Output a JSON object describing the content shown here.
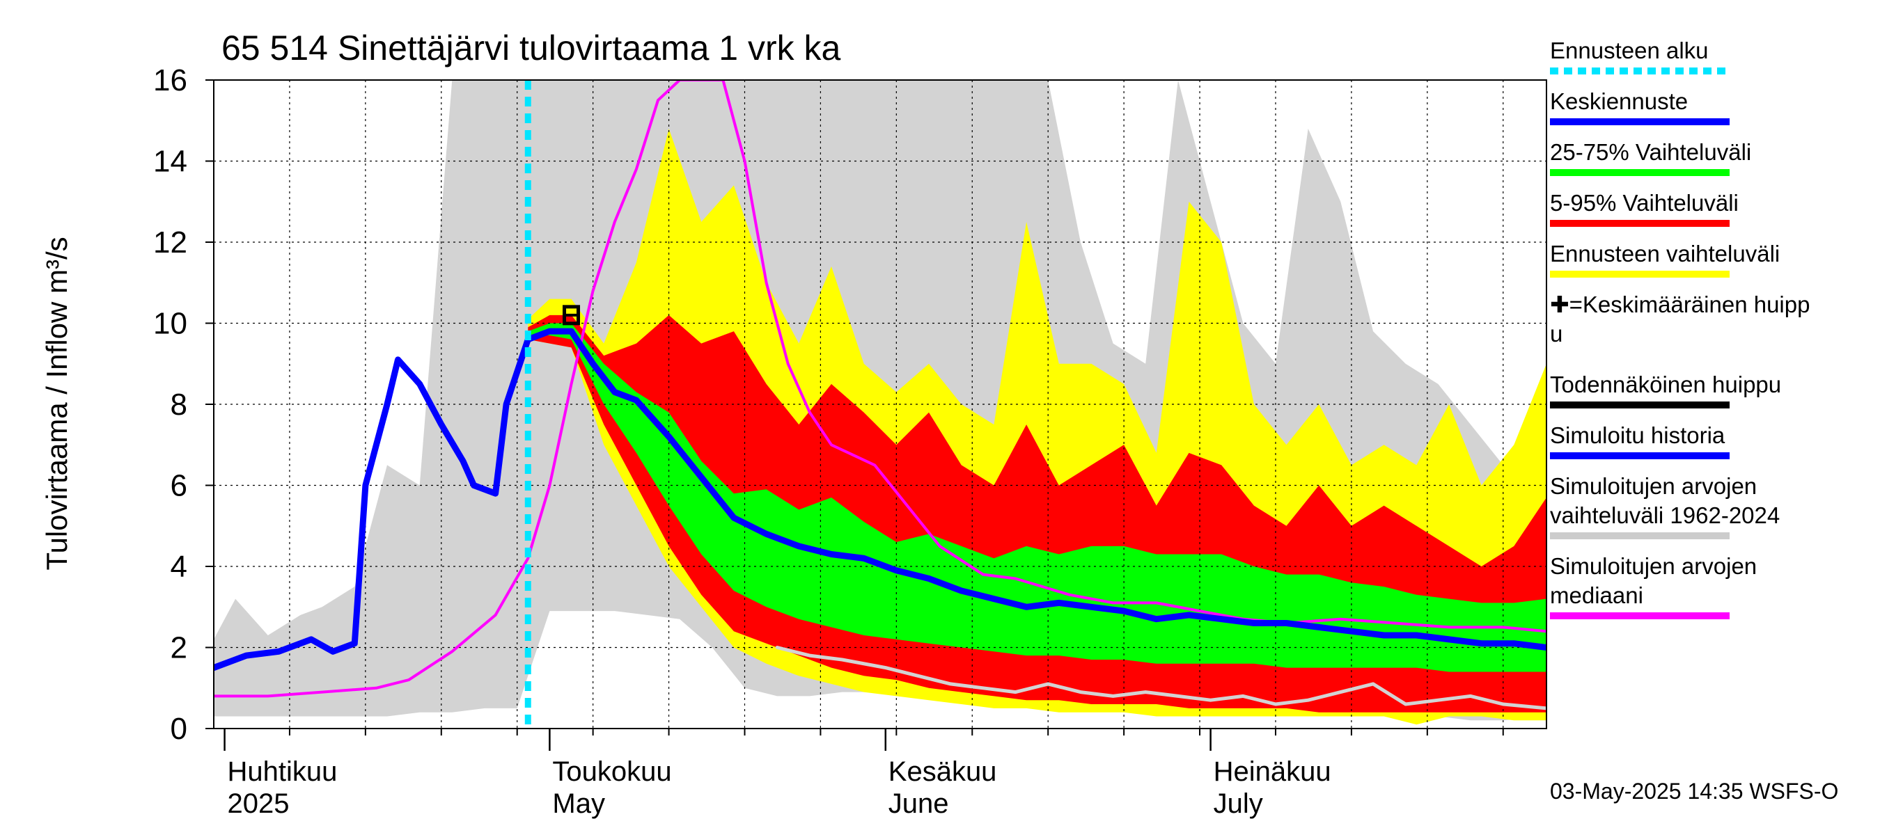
{
  "chart_data": {
    "type": "area",
    "title": "65 514 Sinettäjärvi tulovirtaama 1 vrk ka",
    "ylabel": "Tulovirtaama / Inflow   m³/s",
    "ylim": [
      0,
      16
    ],
    "yticks": [
      "0",
      "2",
      "4",
      "6",
      "8",
      "10",
      "12",
      "14",
      "16"
    ],
    "xlim": [
      "2025-03-31",
      "2025-08-01"
    ],
    "x_month_labels": [
      {
        "fi": "Huhtikuu",
        "en": "2025",
        "date": "2025-04-01"
      },
      {
        "fi": "Toukokuu",
        "en": "May",
        "date": "2025-05-01"
      },
      {
        "fi": "Kesäkuu",
        "en": "June",
        "date": "2025-06-01"
      },
      {
        "fi": "Heinäkuu",
        "en": "July",
        "date": "2025-07-01"
      }
    ],
    "grid": true,
    "legend_position": "right",
    "footer": "03-May-2025 14:35 WSFS-O",
    "forecast_start": "2025-04-29",
    "peak_marker": {
      "date": "2025-05-03",
      "value": 10.2
    },
    "legend": [
      {
        "label": "Ennusteen alku",
        "color": "#00e5ff",
        "style": "dashed"
      },
      {
        "label": "Keskiennuste",
        "color": "#0000ff",
        "style": "solid"
      },
      {
        "label": "25-75% Vaihteluväli",
        "color": "#00ff00",
        "style": "solid"
      },
      {
        "label": "5-95% Vaihteluväli",
        "color": "#ff0000",
        "style": "solid"
      },
      {
        "label": "Ennusteen vaihteluväli",
        "color": "#ffff00",
        "style": "solid"
      },
      {
        "label": "✚=Keskimääräinen huipp u",
        "color": "",
        "style": "none"
      },
      {
        "label": "Todennäköinen huippu",
        "color": "#000000",
        "style": "solid"
      },
      {
        "label": "Simuloitu historia",
        "color": "#0000ff",
        "style": "solid"
      },
      {
        "label": "Simuloitujen arvojen vaihteluväli 1962-2024",
        "color": "#cccccc",
        "style": "solid"
      },
      {
        "label": "Simuloitujen arvojen mediaani",
        "color": "#ff00ff",
        "style": "solid"
      }
    ],
    "colors": {
      "hist_range": "#d3d3d3",
      "forecast_range": "#ffff00",
      "p5_95": "#ff0000",
      "p25_75": "#00ff00",
      "forecast_mean": "#0000ff",
      "history": "#0000ff",
      "median": "#ff00ff",
      "forecast_start": "#00e5ff",
      "min_forecast": "#d3d3d3"
    },
    "series": [
      {
        "name": "Simuloitujen arvojen vaihteluväli 1962-2024",
        "kind": "band",
        "x": [
          "2025-03-31",
          "2025-04-02",
          "2025-04-05",
          "2025-04-08",
          "2025-04-10",
          "2025-04-13",
          "2025-04-16",
          "2025-04-19",
          "2025-04-22",
          "2025-04-25",
          "2025-04-28",
          "2025-05-01",
          "2025-05-04",
          "2025-05-07",
          "2025-05-10",
          "2025-05-13",
          "2025-05-16",
          "2025-05-19",
          "2025-05-22",
          "2025-05-25",
          "2025-05-28",
          "2025-06-01",
          "2025-06-04",
          "2025-06-07",
          "2025-06-10",
          "2025-06-13",
          "2025-06-16",
          "2025-06-19",
          "2025-06-22",
          "2025-06-25",
          "2025-06-28",
          "2025-07-01",
          "2025-07-04",
          "2025-07-07",
          "2025-07-10",
          "2025-07-13",
          "2025-07-16",
          "2025-07-19",
          "2025-07-22",
          "2025-07-25",
          "2025-07-28",
          "2025-08-01"
        ],
        "low": [
          0.3,
          0.3,
          0.3,
          0.3,
          0.3,
          0.3,
          0.3,
          0.4,
          0.4,
          0.5,
          0.5,
          2.9,
          2.9,
          2.9,
          2.8,
          2.7,
          2.0,
          1.0,
          0.8,
          0.8,
          0.9,
          0.9,
          0.8,
          0.8,
          0.8,
          0.7,
          0.7,
          0.6,
          0.5,
          0.5,
          0.5,
          0.4,
          0.4,
          0.4,
          0.4,
          0.4,
          0.3,
          0.3,
          0.3,
          0.2,
          0.2,
          0.3
        ],
        "high": [
          2.2,
          3.2,
          2.3,
          2.8,
          3.0,
          3.5,
          6.5,
          6.0,
          16.0,
          16.0,
          16.0,
          16.0,
          16.0,
          16.0,
          16.0,
          16.0,
          16.0,
          16.0,
          16.0,
          16.0,
          16.0,
          16.0,
          16.0,
          16.0,
          16.0,
          16.0,
          16.0,
          12.0,
          9.5,
          9.0,
          16.0,
          13.0,
          10.0,
          9.0,
          14.8,
          13.0,
          9.8,
          9.0,
          8.5,
          7.5,
          6.5,
          4.5
        ]
      },
      {
        "name": "Ennusteen vaihteluväli",
        "kind": "band",
        "x": [
          "2025-04-29",
          "2025-05-01",
          "2025-05-03",
          "2025-05-06",
          "2025-05-09",
          "2025-05-12",
          "2025-05-15",
          "2025-05-18",
          "2025-05-21",
          "2025-05-24",
          "2025-05-27",
          "2025-05-30",
          "2025-06-02",
          "2025-06-05",
          "2025-06-08",
          "2025-06-11",
          "2025-06-14",
          "2025-06-17",
          "2025-06-20",
          "2025-06-23",
          "2025-06-26",
          "2025-06-29",
          "2025-07-02",
          "2025-07-05",
          "2025-07-08",
          "2025-07-11",
          "2025-07-14",
          "2025-07-17",
          "2025-07-20",
          "2025-07-23",
          "2025-07-26",
          "2025-07-29",
          "2025-08-01"
        ],
        "low": [
          9.6,
          9.5,
          9.4,
          7.0,
          5.5,
          4.0,
          3.0,
          2.0,
          1.6,
          1.3,
          1.1,
          0.9,
          0.8,
          0.7,
          0.6,
          0.5,
          0.5,
          0.4,
          0.4,
          0.4,
          0.3,
          0.3,
          0.3,
          0.3,
          0.3,
          0.3,
          0.3,
          0.3,
          0.1,
          0.3,
          0.3,
          0.2,
          0.2
        ],
        "high": [
          10.1,
          10.6,
          10.6,
          9.5,
          11.5,
          14.8,
          12.5,
          13.4,
          11.0,
          9.5,
          11.4,
          9.0,
          8.3,
          9.0,
          8.0,
          7.5,
          12.5,
          9.0,
          9.0,
          8.5,
          6.8,
          13.0,
          12.0,
          8.0,
          7.0,
          8.0,
          6.5,
          7.0,
          6.5,
          8.0,
          6.0,
          7.0,
          9.0
        ]
      },
      {
        "name": "5-95% Vaihteluväli",
        "kind": "band",
        "x": [
          "2025-04-29",
          "2025-05-01",
          "2025-05-03",
          "2025-05-06",
          "2025-05-09",
          "2025-05-12",
          "2025-05-15",
          "2025-05-18",
          "2025-05-21",
          "2025-05-24",
          "2025-05-27",
          "2025-05-30",
          "2025-06-02",
          "2025-06-05",
          "2025-06-08",
          "2025-06-11",
          "2025-06-14",
          "2025-06-17",
          "2025-06-20",
          "2025-06-23",
          "2025-06-26",
          "2025-06-29",
          "2025-07-02",
          "2025-07-05",
          "2025-07-08",
          "2025-07-11",
          "2025-07-14",
          "2025-07-17",
          "2025-07-20",
          "2025-07-23",
          "2025-07-26",
          "2025-07-29",
          "2025-08-01"
        ],
        "low": [
          9.6,
          9.5,
          9.4,
          7.5,
          6.0,
          4.5,
          3.3,
          2.4,
          2.1,
          1.8,
          1.5,
          1.3,
          1.2,
          1.0,
          0.9,
          0.8,
          0.7,
          0.7,
          0.6,
          0.6,
          0.6,
          0.5,
          0.5,
          0.5,
          0.5,
          0.4,
          0.4,
          0.4,
          0.4,
          0.4,
          0.4,
          0.4,
          0.4
        ],
        "high": [
          9.9,
          10.2,
          10.2,
          9.2,
          9.5,
          10.2,
          9.5,
          9.8,
          8.5,
          7.5,
          8.5,
          7.8,
          7.0,
          7.8,
          6.5,
          6.0,
          7.5,
          6.0,
          6.5,
          7.0,
          5.5,
          6.8,
          6.5,
          5.5,
          5.0,
          6.0,
          5.0,
          5.5,
          5.0,
          4.5,
          4.0,
          4.5,
          5.7
        ]
      },
      {
        "name": "25-75% Vaihteluväli",
        "kind": "band",
        "x": [
          "2025-04-29",
          "2025-05-01",
          "2025-05-03",
          "2025-05-06",
          "2025-05-09",
          "2025-05-12",
          "2025-05-15",
          "2025-05-18",
          "2025-05-21",
          "2025-05-24",
          "2025-05-27",
          "2025-05-30",
          "2025-06-02",
          "2025-06-05",
          "2025-06-08",
          "2025-06-11",
          "2025-06-14",
          "2025-06-17",
          "2025-06-20",
          "2025-06-23",
          "2025-06-26",
          "2025-06-29",
          "2025-07-02",
          "2025-07-05",
          "2025-07-08",
          "2025-07-11",
          "2025-07-14",
          "2025-07-17",
          "2025-07-20",
          "2025-07-23",
          "2025-07-26",
          "2025-07-29",
          "2025-08-01"
        ],
        "low": [
          9.7,
          9.7,
          9.6,
          8.0,
          6.8,
          5.5,
          4.3,
          3.4,
          3.0,
          2.7,
          2.5,
          2.3,
          2.2,
          2.1,
          2.0,
          1.9,
          1.8,
          1.8,
          1.7,
          1.7,
          1.6,
          1.6,
          1.6,
          1.6,
          1.5,
          1.5,
          1.5,
          1.5,
          1.5,
          1.4,
          1.4,
          1.4,
          1.4
        ],
        "high": [
          9.8,
          10.0,
          10.0,
          9.0,
          8.3,
          7.8,
          6.6,
          5.8,
          5.9,
          5.4,
          5.7,
          5.1,
          4.6,
          4.8,
          4.5,
          4.2,
          4.5,
          4.3,
          4.5,
          4.5,
          4.3,
          4.3,
          4.3,
          4.0,
          3.8,
          3.8,
          3.6,
          3.5,
          3.3,
          3.2,
          3.1,
          3.1,
          3.2
        ]
      },
      {
        "name": "Minimiennuste",
        "kind": "line",
        "x": [
          "2025-05-22",
          "2025-05-25",
          "2025-05-28",
          "2025-06-01",
          "2025-06-04",
          "2025-06-07",
          "2025-06-10",
          "2025-06-13",
          "2025-06-16",
          "2025-06-19",
          "2025-06-22",
          "2025-06-25",
          "2025-06-28",
          "2025-07-01",
          "2025-07-04",
          "2025-07-07",
          "2025-07-10",
          "2025-07-13",
          "2025-07-16",
          "2025-07-19",
          "2025-07-22",
          "2025-07-25",
          "2025-07-28",
          "2025-08-01"
        ],
        "values": [
          2.0,
          1.8,
          1.7,
          1.5,
          1.3,
          1.1,
          1.0,
          0.9,
          1.1,
          0.9,
          0.8,
          0.9,
          0.8,
          0.7,
          0.8,
          0.6,
          0.7,
          0.9,
          1.1,
          0.6,
          0.7,
          0.8,
          0.6,
          0.5
        ]
      },
      {
        "name": "Simuloitujen arvojen mediaani",
        "kind": "line",
        "x": [
          "2025-03-31",
          "2025-04-05",
          "2025-04-10",
          "2025-04-15",
          "2025-04-18",
          "2025-04-22",
          "2025-04-26",
          "2025-04-29",
          "2025-05-01",
          "2025-05-03",
          "2025-05-05",
          "2025-05-07",
          "2025-05-09",
          "2025-05-11",
          "2025-05-13",
          "2025-05-17",
          "2025-05-19",
          "2025-05-21",
          "2025-05-23",
          "2025-05-25",
          "2025-05-27",
          "2025-05-31",
          "2025-06-03",
          "2025-06-06",
          "2025-06-10",
          "2025-06-13",
          "2025-06-18",
          "2025-06-22",
          "2025-06-26",
          "2025-06-30",
          "2025-07-04",
          "2025-07-08",
          "2025-07-13",
          "2025-07-18",
          "2025-07-23",
          "2025-07-28",
          "2025-08-01"
        ],
        "values": [
          0.8,
          0.8,
          0.9,
          1.0,
          1.2,
          1.9,
          2.8,
          4.2,
          6.0,
          8.5,
          10.8,
          12.5,
          13.8,
          15.5,
          16.0,
          16.0,
          14.0,
          11.0,
          9.0,
          7.8,
          7.0,
          6.5,
          5.5,
          4.5,
          3.8,
          3.7,
          3.3,
          3.1,
          3.1,
          2.9,
          2.7,
          2.6,
          2.7,
          2.6,
          2.5,
          2.5,
          2.4
        ]
      },
      {
        "name": "Simuloitu historia",
        "kind": "line",
        "x": [
          "2025-03-31",
          "2025-04-03",
          "2025-04-06",
          "2025-04-09",
          "2025-04-11",
          "2025-04-13",
          "2025-04-14",
          "2025-04-16",
          "2025-04-17",
          "2025-04-19",
          "2025-04-21",
          "2025-04-23",
          "2025-04-24",
          "2025-04-26",
          "2025-04-27",
          "2025-04-29"
        ],
        "values": [
          1.5,
          1.8,
          1.9,
          2.2,
          1.9,
          2.1,
          6.0,
          8.0,
          9.1,
          8.5,
          7.5,
          6.6,
          6.0,
          5.8,
          8.0,
          9.6
        ]
      },
      {
        "name": "Keskiennuste",
        "kind": "line",
        "x": [
          "2025-04-29",
          "2025-05-01",
          "2025-05-03",
          "2025-05-05",
          "2025-05-07",
          "2025-05-09",
          "2025-05-12",
          "2025-05-15",
          "2025-05-18",
          "2025-05-21",
          "2025-05-24",
          "2025-05-27",
          "2025-05-30",
          "2025-06-02",
          "2025-06-05",
          "2025-06-08",
          "2025-06-11",
          "2025-06-14",
          "2025-06-17",
          "2025-06-20",
          "2025-06-23",
          "2025-06-26",
          "2025-06-29",
          "2025-07-02",
          "2025-07-05",
          "2025-07-08",
          "2025-07-11",
          "2025-07-14",
          "2025-07-17",
          "2025-07-20",
          "2025-07-23",
          "2025-07-26",
          "2025-07-29",
          "2025-08-01"
        ],
        "values": [
          9.6,
          9.8,
          9.8,
          9.0,
          8.3,
          8.1,
          7.2,
          6.2,
          5.2,
          4.8,
          4.5,
          4.3,
          4.2,
          3.9,
          3.7,
          3.4,
          3.2,
          3.0,
          3.1,
          3.0,
          2.9,
          2.7,
          2.8,
          2.7,
          2.6,
          2.6,
          2.5,
          2.4,
          2.3,
          2.3,
          2.2,
          2.1,
          2.1,
          2.0
        ]
      }
    ]
  }
}
